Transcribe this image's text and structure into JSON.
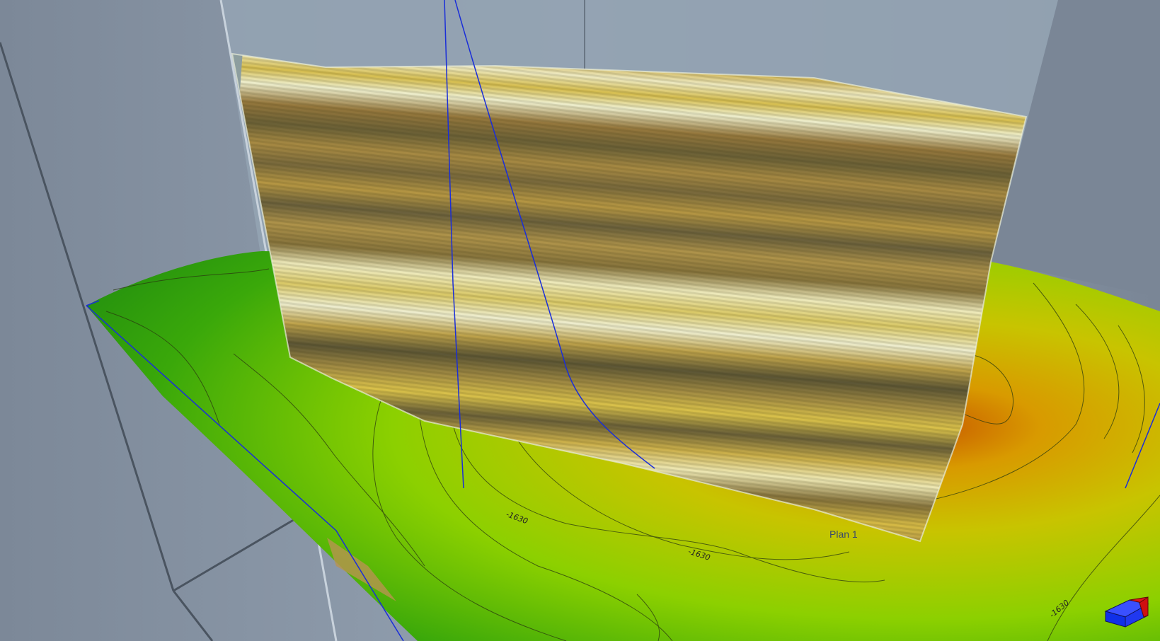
{
  "viewer": {
    "background_color": "#8896a6",
    "surface_colors": [
      "#2e9a0a",
      "#7fcf00",
      "#c8c000",
      "#c86a00"
    ],
    "seismic_colors": [
      "#fff8d8",
      "#e8c44a",
      "#8a6a3a",
      "#4a4030"
    ],
    "well_color": "#1a2ed8"
  },
  "well_labels": [
    {
      "text": "Plan 1"
    }
  ],
  "contour_labels": [
    {
      "text": "-1630"
    },
    {
      "text": "-1630"
    },
    {
      "text": "-1630"
    }
  ],
  "compass": {
    "icon": "orientation-cube-icon",
    "colors": [
      "#1030ff",
      "#e01818"
    ]
  }
}
